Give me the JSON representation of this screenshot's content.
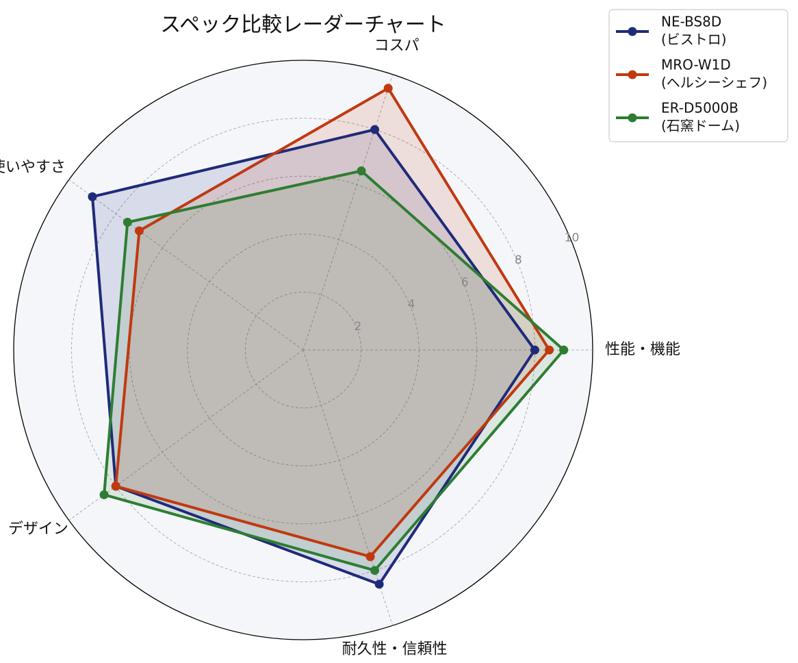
{
  "chart_data": {
    "type": "radar",
    "title": "スペック比較レーダーチャート",
    "axes": [
      "性能・機能",
      "コスパ",
      "使いやすさ",
      "デザイン",
      "耐久性・信頼性"
    ],
    "r_range": [
      0,
      10
    ],
    "r_ticks": [
      "2",
      "4",
      "6",
      "8",
      "10"
    ],
    "grid": true,
    "legend_position": "top-right",
    "series": [
      {
        "name_line1": "NE-BS8D",
        "name_line2": "(ビストロ)",
        "color": "#1f2a7a",
        "values": [
          8.0,
          8.0,
          9.0,
          8.0,
          8.5
        ]
      },
      {
        "name_line1": "MRO-W1D",
        "name_line2": "(ヘルシーシェフ)",
        "color": "#c0390f",
        "values": [
          8.5,
          9.5,
          7.0,
          8.0,
          7.5
        ]
      },
      {
        "name_line1": "ER-D5000B",
        "name_line2": "(石窯ドーム)",
        "color": "#2e7d32",
        "values": [
          9.0,
          6.5,
          7.5,
          8.5,
          8.0
        ]
      }
    ]
  }
}
